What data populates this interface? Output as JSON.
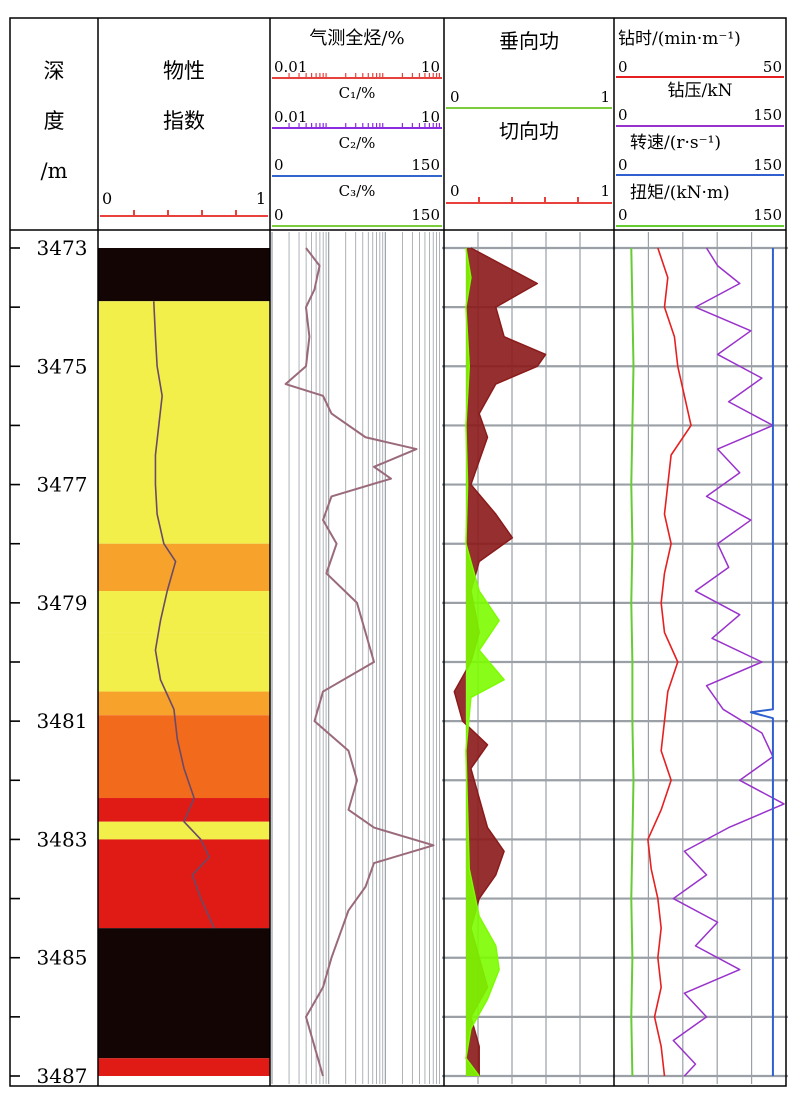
{
  "header": {
    "depth": {
      "line1": "深",
      "line2": "度",
      "line3": "/m"
    },
    "property": {
      "line1": "物性",
      "line2": "指数",
      "scale_min": "0",
      "scale_max": "1"
    },
    "gas": {
      "total": {
        "label": "气测全烃/%",
        "scale_min": "0.01",
        "scale_max": "10"
      },
      "c1": {
        "label": "C₁/%",
        "scale_min": "0.01",
        "scale_max": "10"
      },
      "c2": {
        "label": "C₂/%",
        "scale_min": "0",
        "scale_max": "150"
      },
      "c3": {
        "label": "C₃/%",
        "scale_min": "0",
        "scale_max": "150"
      }
    },
    "work": {
      "vertical": {
        "label": "垂向功",
        "scale_min": "0",
        "scale_max": "1"
      },
      "tangential": {
        "label": "切向功",
        "scale_min": "0",
        "scale_max": "1"
      }
    },
    "drilling": {
      "time": {
        "label": "钻时/(min·m⁻¹)",
        "scale_min": "0",
        "scale_max": "50"
      },
      "wob": {
        "label": "钻压/kN",
        "scale_min": "0",
        "scale_max": "150"
      },
      "rpm": {
        "label": "转速/(r·s⁻¹)",
        "scale_min": "0",
        "scale_max": "150"
      },
      "torque": {
        "label": "扭矩/(kN·m)",
        "scale_min": "0",
        "scale_max": "150"
      }
    }
  },
  "colors": {
    "frame": "#000000",
    "total_gas": "#e8413c",
    "c1": "#8a2be2",
    "c2": "#3366cc",
    "c3": "#7ccd3e",
    "vertical_work": "#8b1a1a",
    "tangential_work": "#7cfc00",
    "drill_time": "#e62020",
    "wob": "#9932cc",
    "rpm": "#3060d0",
    "torque": "#66cc33",
    "gas_curve": "#9a6a7a",
    "property_curve": "#6a4a6a"
  },
  "chart_data": {
    "type": "line",
    "title": "",
    "ylabel": "深度/m",
    "y_axis": "depth",
    "depth_range": [
      3473,
      3487
    ],
    "depth_ticks": [
      3473,
      3475,
      3477,
      3479,
      3481,
      3483,
      3485,
      3487
    ],
    "property_index_bands": [
      {
        "from": 3473.0,
        "to": 3473.9,
        "value": 0.0
      },
      {
        "from": 3473.9,
        "to": 3478.0,
        "value": 0.55
      },
      {
        "from": 3478.0,
        "to": 3478.8,
        "value": 0.7
      },
      {
        "from": 3478.8,
        "to": 3479.5,
        "value": 0.55
      },
      {
        "from": 3479.5,
        "to": 3480.5,
        "value": 0.55
      },
      {
        "from": 3480.5,
        "to": 3480.9,
        "value": 0.7
      },
      {
        "from": 3480.9,
        "to": 3482.3,
        "value": 0.8
      },
      {
        "from": 3482.3,
        "to": 3482.7,
        "value": 0.9
      },
      {
        "from": 3482.7,
        "to": 3483.0,
        "value": 0.55
      },
      {
        "from": 3483.0,
        "to": 3484.5,
        "value": 0.9
      },
      {
        "from": 3484.5,
        "to": 3486.7,
        "value": 0.0
      },
      {
        "from": 3486.7,
        "to": 3487.0,
        "value": 0.95
      }
    ],
    "series": [
      {
        "name": "物性指数",
        "track": "property",
        "x_range": [
          0,
          1
        ],
        "points": [
          [
            3473.9,
            0.32
          ],
          [
            3474.5,
            0.33
          ],
          [
            3475.0,
            0.34
          ],
          [
            3475.5,
            0.37
          ],
          [
            3476.0,
            0.35
          ],
          [
            3476.5,
            0.33
          ],
          [
            3477.0,
            0.33
          ],
          [
            3477.5,
            0.34
          ],
          [
            3478.0,
            0.38
          ],
          [
            3478.3,
            0.45
          ],
          [
            3478.8,
            0.4
          ],
          [
            3479.3,
            0.36
          ],
          [
            3479.8,
            0.33
          ],
          [
            3480.3,
            0.36
          ],
          [
            3480.8,
            0.44
          ],
          [
            3481.3,
            0.46
          ],
          [
            3481.8,
            0.5
          ],
          [
            3482.3,
            0.56
          ],
          [
            3482.7,
            0.5
          ],
          [
            3483.0,
            0.6
          ],
          [
            3483.3,
            0.65
          ],
          [
            3483.6,
            0.55
          ],
          [
            3484.0,
            0.6
          ],
          [
            3484.5,
            0.68
          ]
        ]
      },
      {
        "name": "气测全烃",
        "track": "gas",
        "x_range": [
          0,
          1
        ],
        "points": [
          [
            3473.0,
            0.2
          ],
          [
            3473.3,
            0.28
          ],
          [
            3473.7,
            0.25
          ],
          [
            3474.0,
            0.2
          ],
          [
            3474.5,
            0.22
          ],
          [
            3475.0,
            0.2
          ],
          [
            3475.3,
            0.08
          ],
          [
            3475.5,
            0.3
          ],
          [
            3475.8,
            0.35
          ],
          [
            3476.2,
            0.55
          ],
          [
            3476.4,
            0.85
          ],
          [
            3476.7,
            0.6
          ],
          [
            3476.9,
            0.7
          ],
          [
            3477.2,
            0.35
          ],
          [
            3477.6,
            0.3
          ],
          [
            3478.0,
            0.38
          ],
          [
            3478.5,
            0.32
          ],
          [
            3479.0,
            0.5
          ],
          [
            3479.5,
            0.55
          ],
          [
            3480.0,
            0.6
          ],
          [
            3480.5,
            0.3
          ],
          [
            3481.0,
            0.25
          ],
          [
            3481.5,
            0.45
          ],
          [
            3482.0,
            0.5
          ],
          [
            3482.5,
            0.45
          ],
          [
            3482.8,
            0.6
          ],
          [
            3483.1,
            0.95
          ],
          [
            3483.4,
            0.6
          ],
          [
            3483.8,
            0.55
          ],
          [
            3484.2,
            0.45
          ],
          [
            3484.6,
            0.4
          ],
          [
            3485.0,
            0.35
          ],
          [
            3485.5,
            0.3
          ],
          [
            3486.0,
            0.2
          ],
          [
            3486.5,
            0.25
          ],
          [
            3487.0,
            0.3
          ]
        ]
      },
      {
        "name": "垂向功",
        "track": "work",
        "x_range": [
          0,
          1
        ],
        "points": [
          [
            3473.0,
            0.15
          ],
          [
            3473.3,
            0.35
          ],
          [
            3473.6,
            0.55
          ],
          [
            3474.0,
            0.3
          ],
          [
            3474.5,
            0.35
          ],
          [
            3474.8,
            0.6
          ],
          [
            3475.0,
            0.55
          ],
          [
            3475.3,
            0.3
          ],
          [
            3475.8,
            0.2
          ],
          [
            3476.2,
            0.25
          ],
          [
            3476.6,
            0.2
          ],
          [
            3477.0,
            0.15
          ],
          [
            3477.5,
            0.3
          ],
          [
            3477.9,
            0.4
          ],
          [
            3478.3,
            0.2
          ],
          [
            3478.8,
            0.15
          ],
          [
            3479.5,
            0.2
          ],
          [
            3480.0,
            0.15
          ],
          [
            3480.5,
            0.05
          ],
          [
            3481.0,
            0.1
          ],
          [
            3481.4,
            0.25
          ],
          [
            3481.8,
            0.15
          ],
          [
            3482.3,
            0.2
          ],
          [
            3482.8,
            0.25
          ],
          [
            3483.2,
            0.35
          ],
          [
            3483.6,
            0.3
          ],
          [
            3484.0,
            0.2
          ],
          [
            3484.5,
            0.15
          ],
          [
            3485.0,
            0.2
          ],
          [
            3485.5,
            0.25
          ],
          [
            3486.0,
            0.15
          ],
          [
            3486.5,
            0.2
          ],
          [
            3487.0,
            0.2
          ]
        ]
      },
      {
        "name": "切向功",
        "track": "work",
        "x_range": [
          0,
          1
        ],
        "points": [
          [
            3473.0,
            0.12
          ],
          [
            3473.5,
            0.15
          ],
          [
            3474.0,
            0.12
          ],
          [
            3475.0,
            0.14
          ],
          [
            3476.0,
            0.12
          ],
          [
            3477.0,
            0.13
          ],
          [
            3478.0,
            0.12
          ],
          [
            3478.8,
            0.2
          ],
          [
            3479.3,
            0.32
          ],
          [
            3479.8,
            0.2
          ],
          [
            3480.3,
            0.35
          ],
          [
            3480.6,
            0.15
          ],
          [
            3481.5,
            0.12
          ],
          [
            3482.5,
            0.13
          ],
          [
            3483.5,
            0.14
          ],
          [
            3484.3,
            0.2
          ],
          [
            3484.8,
            0.3
          ],
          [
            3485.2,
            0.32
          ],
          [
            3485.7,
            0.25
          ],
          [
            3486.2,
            0.15
          ],
          [
            3486.7,
            0.12
          ],
          [
            3487.0,
            0.2
          ]
        ]
      },
      {
        "name": "钻时",
        "track": "drilling",
        "x_range": [
          0,
          50
        ],
        "points": [
          [
            3473.0,
            12
          ],
          [
            3473.5,
            15
          ],
          [
            3474.0,
            14
          ],
          [
            3474.5,
            17
          ],
          [
            3475.0,
            18
          ],
          [
            3475.5,
            20
          ],
          [
            3476.0,
            22
          ],
          [
            3476.5,
            16
          ],
          [
            3477.0,
            15
          ],
          [
            3477.5,
            14
          ],
          [
            3478.0,
            16
          ],
          [
            3478.5,
            14
          ],
          [
            3479.0,
            13
          ],
          [
            3479.5,
            14
          ],
          [
            3480.0,
            18
          ],
          [
            3480.5,
            15
          ],
          [
            3481.0,
            14
          ],
          [
            3481.5,
            13
          ],
          [
            3482.0,
            16
          ],
          [
            3482.5,
            13
          ],
          [
            3483.0,
            9
          ],
          [
            3483.5,
            10
          ],
          [
            3484.0,
            12
          ],
          [
            3484.5,
            13
          ],
          [
            3485.0,
            12
          ],
          [
            3485.5,
            13
          ],
          [
            3486.0,
            11
          ],
          [
            3486.5,
            13
          ],
          [
            3487.0,
            14
          ]
        ]
      },
      {
        "name": "钻压",
        "track": "drilling",
        "x_range": [
          0,
          150
        ],
        "points": [
          [
            3473.0,
            80
          ],
          [
            3473.3,
            90
          ],
          [
            3473.6,
            110
          ],
          [
            3474.0,
            70
          ],
          [
            3474.4,
            120
          ],
          [
            3474.8,
            90
          ],
          [
            3475.2,
            130
          ],
          [
            3475.6,
            100
          ],
          [
            3476.0,
            140
          ],
          [
            3476.4,
            90
          ],
          [
            3476.8,
            110
          ],
          [
            3477.2,
            80
          ],
          [
            3477.6,
            120
          ],
          [
            3478.0,
            90
          ],
          [
            3478.4,
            100
          ],
          [
            3478.8,
            70
          ],
          [
            3479.2,
            110
          ],
          [
            3479.6,
            85
          ],
          [
            3480.0,
            130
          ],
          [
            3480.4,
            80
          ],
          [
            3480.8,
            95
          ],
          [
            3481.2,
            130
          ],
          [
            3481.6,
            140
          ],
          [
            3482.0,
            110
          ],
          [
            3482.4,
            150
          ],
          [
            3482.8,
            100
          ],
          [
            3483.2,
            60
          ],
          [
            3483.6,
            80
          ],
          [
            3484.0,
            50
          ],
          [
            3484.4,
            90
          ],
          [
            3484.8,
            70
          ],
          [
            3485.2,
            110
          ],
          [
            3485.6,
            60
          ],
          [
            3486.0,
            80
          ],
          [
            3486.4,
            50
          ],
          [
            3486.8,
            70
          ],
          [
            3487.0,
            60
          ]
        ]
      },
      {
        "name": "转速",
        "track": "drilling",
        "x_range": [
          0,
          150
        ],
        "points": [
          [
            3473.0,
            140
          ],
          [
            3480.8,
            140
          ],
          [
            3480.85,
            120
          ],
          [
            3480.95,
            140
          ],
          [
            3487.0,
            140
          ]
        ]
      },
      {
        "name": "扭矩",
        "track": "drilling",
        "x_range": [
          0,
          150
        ],
        "points": [
          [
            3473.0,
            12
          ],
          [
            3474.0,
            13
          ],
          [
            3475.0,
            14
          ],
          [
            3476.0,
            13
          ],
          [
            3477.0,
            12
          ],
          [
            3478.0,
            13
          ],
          [
            3479.0,
            12
          ],
          [
            3480.0,
            13
          ],
          [
            3481.0,
            13
          ],
          [
            3482.0,
            14
          ],
          [
            3483.0,
            13
          ],
          [
            3484.0,
            12
          ],
          [
            3485.0,
            13
          ],
          [
            3486.0,
            12
          ],
          [
            3487.0,
            13
          ]
        ]
      }
    ]
  }
}
